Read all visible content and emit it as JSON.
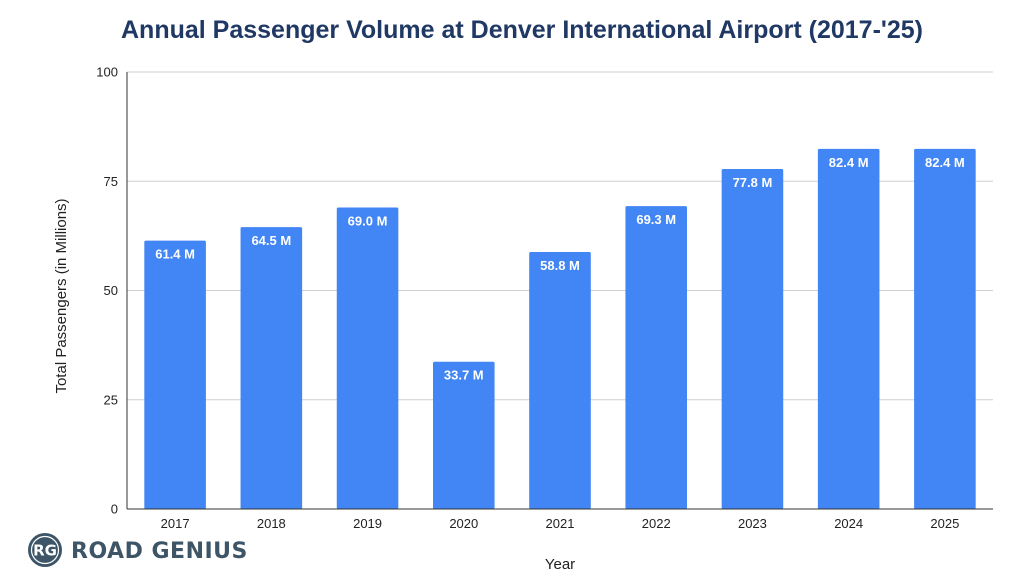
{
  "chart_data": {
    "type": "bar",
    "title": "Annual Passenger Volume at Denver International Airport (2017-'25)",
    "xlabel": "Year",
    "ylabel": "Total Passengers (in Millions)",
    "ylim": [
      0,
      100
    ],
    "yticks": [
      0,
      25,
      50,
      75,
      100
    ],
    "grid": true,
    "categories": [
      "2017",
      "2018",
      "2019",
      "2020",
      "2021",
      "2022",
      "2023",
      "2024",
      "2025"
    ],
    "values": [
      61.4,
      64.5,
      69.0,
      33.7,
      58.8,
      69.3,
      77.8,
      82.4,
      82.4
    ],
    "data_labels": [
      "61.4 M",
      "64.5 M",
      "69.0 M",
      "33.7 M",
      "58.8 M",
      "69.3 M",
      "77.8 M",
      "82.4 M",
      "82.4 M"
    ],
    "bar_color": "#4285f4"
  },
  "branding": {
    "monogram": "RG",
    "name": "ROAD GENIUS",
    "icon": "road-genius-logo-icon"
  },
  "colors": {
    "title": "#1f3864",
    "bar": "#4285f4",
    "logo_circle": "#3d5566"
  }
}
